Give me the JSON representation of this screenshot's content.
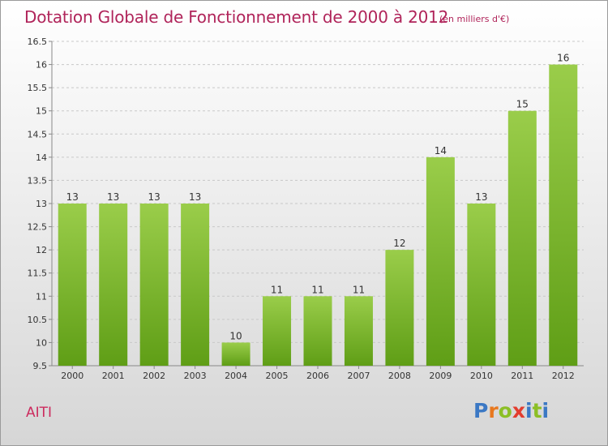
{
  "chart_data": {
    "type": "bar",
    "title": "Dotation Globale de Fonctionnement de 2000 à 2012",
    "subtitle": "(en milliers d'€)",
    "categories": [
      "2000",
      "2001",
      "2002",
      "2003",
      "2004",
      "2005",
      "2006",
      "2007",
      "2008",
      "2009",
      "2010",
      "2011",
      "2012"
    ],
    "values": [
      13,
      13,
      13,
      13,
      10,
      11,
      11,
      11,
      12,
      14,
      13,
      15,
      16
    ],
    "data_labels": [
      "13",
      "13",
      "13",
      "13",
      "10",
      "11",
      "11",
      "11",
      "12",
      "14",
      "13",
      "15",
      "16"
    ],
    "ylim": [
      9.5,
      16.5
    ],
    "yticks": [
      "9.5",
      "10",
      "10.5",
      "11",
      "11.5",
      "12",
      "12.5",
      "13",
      "13.5",
      "14",
      "14.5",
      "15",
      "15.5",
      "16",
      "16.5"
    ],
    "xlabel": "",
    "ylabel": "",
    "grid": true,
    "colors": {
      "bar_top": "#9acd4a",
      "bar_bottom": "#5f9e16",
      "title": "#b0245a"
    }
  },
  "footer": {
    "commune": "AITI",
    "logo_letters": [
      "P",
      "r",
      "o",
      "x",
      "i",
      "t",
      "i"
    ],
    "logo_colors": [
      "#3b78c4",
      "#e8781e",
      "#8cbf26",
      "#e33d2e",
      "#3b78c4",
      "#8cbf26",
      "#3b78c4"
    ]
  }
}
